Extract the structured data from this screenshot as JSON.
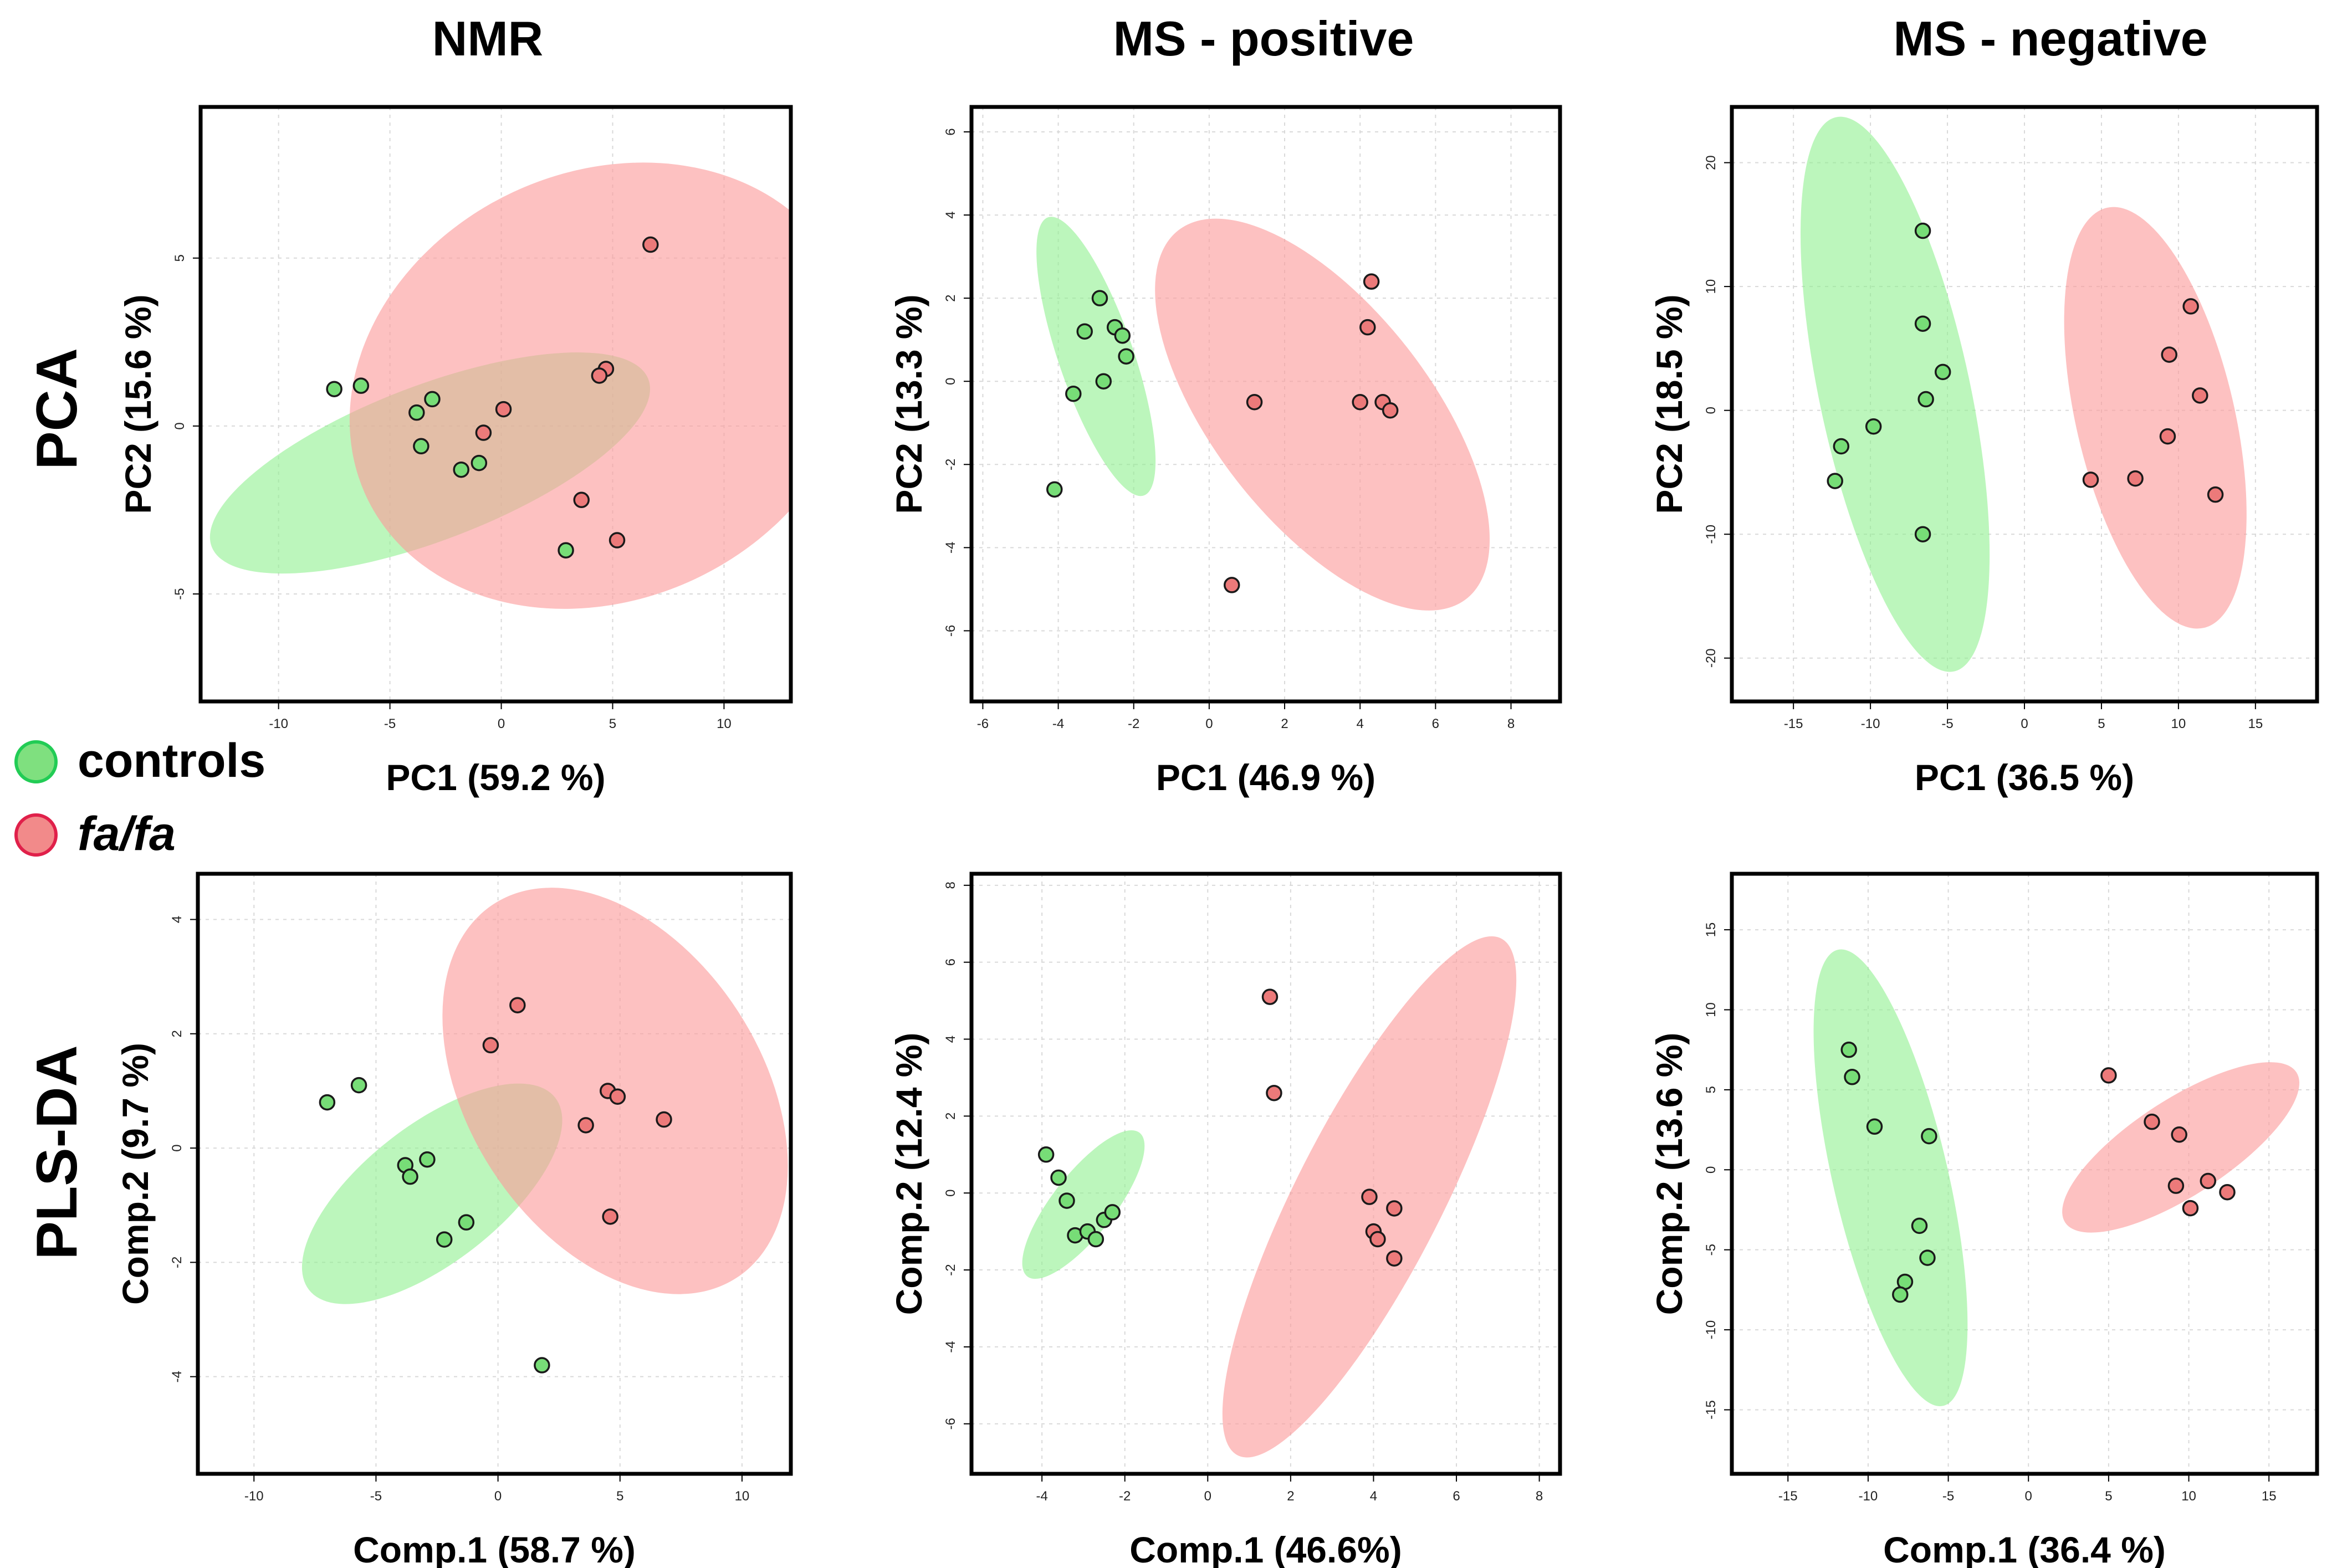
{
  "columns": [
    "NMR",
    "MS - positive",
    "MS - negative"
  ],
  "rows": [
    "PCA",
    "PLS-DA"
  ],
  "legend": [
    {
      "label": "controls",
      "italic": false,
      "fill": "#7fe07f",
      "stroke": "#22cc55"
    },
    {
      "label": "fa/fa",
      "italic": true,
      "fill": "#f28a8a",
      "stroke": "#e0204a"
    }
  ],
  "colors": {
    "controls_point": "#77dd77",
    "fafa_point": "#ec7a7a",
    "controls_ellipse": "#8ff08f",
    "fafa_ellipse": "#fb9b9b",
    "grid": "#d9d9d9"
  },
  "chart_data": [
    {
      "type": "scatter",
      "row": "PCA",
      "column": "NMR",
      "xlabel": "PC1 (59.2 %)",
      "ylabel": "PC2 (15.6 %)",
      "xlim": [
        -13.5,
        13
      ],
      "ylim": [
        -8.2,
        9.5
      ],
      "xticks": [
        -10,
        -5,
        0,
        5,
        10
      ],
      "yticks": [
        -5,
        0,
        5
      ],
      "series": [
        {
          "name": "controls",
          "x": [
            -7.5,
            -6.3,
            -3.8,
            -3.1,
            -3.6,
            -1.8,
            -1.0,
            2.9
          ],
          "y": [
            1.1,
            1.2,
            0.4,
            0.8,
            -0.6,
            -1.3,
            -1.1,
            -3.7
          ],
          "ellipse": {
            "cx": -3.2,
            "cy": -1.1,
            "rx": 10.5,
            "ry": 2.3,
            "angle": -21
          }
        },
        {
          "name": "fa/fa",
          "x": [
            6.7,
            4.7,
            4.4,
            0.1,
            -0.8,
            3.6,
            5.2
          ],
          "y": [
            5.4,
            1.7,
            1.5,
            0.5,
            -0.2,
            -2.2,
            -3.4
          ],
          "ellipse": {
            "cx": 4.6,
            "cy": 1.2,
            "rx": 9.6,
            "ry": 7.8,
            "angle": 65
          }
        }
      ]
    },
    {
      "type": "scatter",
      "row": "PCA",
      "column": "MS - positive",
      "xlabel": "PC1 (46.9 %)",
      "ylabel": "PC2 (13.3 %)",
      "xlim": [
        -6.3,
        9.3
      ],
      "ylim": [
        -7.7,
        6.6
      ],
      "xticks": [
        -6,
        -4,
        -2,
        0,
        2,
        4,
        6,
        8
      ],
      "yticks": [
        -6,
        -4,
        -2,
        0,
        2,
        4,
        6
      ],
      "series": [
        {
          "name": "controls",
          "x": [
            -2.9,
            -3.3,
            -2.5,
            -2.3,
            -2.2,
            -3.6,
            -2.8,
            -4.1
          ],
          "y": [
            2.0,
            1.2,
            1.3,
            1.1,
            0.6,
            -0.3,
            0.0,
            -2.6
          ],
          "ellipse": {
            "cx": -3.0,
            "cy": 0.6,
            "rx": 3.9,
            "ry": 0.9,
            "angle": 71
          }
        },
        {
          "name": "fa/fa",
          "x": [
            4.3,
            4.2,
            1.2,
            4.0,
            4.6,
            4.8,
            0.6
          ],
          "y": [
            2.4,
            1.3,
            -0.5,
            -0.5,
            -0.5,
            -0.7,
            -4.9
          ],
          "ellipse": {
            "cx": 3.0,
            "cy": -0.8,
            "rx": 6.2,
            "ry": 2.6,
            "angle": 52
          }
        }
      ]
    },
    {
      "type": "scatter",
      "row": "PCA",
      "column": "MS - negative",
      "xlabel": "PC1 (36.5 %)",
      "ylabel": "PC2 (18.5 %)",
      "xlim": [
        -19,
        19
      ],
      "ylim": [
        -23.5,
        24.5
      ],
      "xticks": [
        -15,
        -10,
        -5,
        0,
        5,
        10,
        15
      ],
      "yticks": [
        -20,
        -10,
        0,
        10,
        20
      ],
      "series": [
        {
          "name": "controls",
          "x": [
            -6.6,
            -6.6,
            -5.3,
            -6.4,
            -9.8,
            -11.9,
            -12.3,
            -6.6
          ],
          "y": [
            14.5,
            7.0,
            3.1,
            0.9,
            -1.3,
            -2.9,
            -5.7,
            -10.0
          ],
          "ellipse": {
            "cx": -8.4,
            "cy": 1.3,
            "rx": 18.4,
            "ry": 6.1,
            "angle": 78
          }
        },
        {
          "name": "fa/fa",
          "x": [
            10.8,
            9.4,
            11.4,
            9.3,
            7.2,
            4.3,
            12.4
          ],
          "y": [
            8.4,
            4.5,
            1.2,
            -2.1,
            -5.5,
            -5.6,
            -6.8
          ],
          "ellipse": {
            "cx": 8.5,
            "cy": -0.6,
            "rx": 14.0,
            "ry": 6.4,
            "angle": 77
          }
        }
      ]
    },
    {
      "type": "scatter",
      "row": "PLS-DA",
      "column": "NMR",
      "xlabel": "Comp.1 (58.7 %)",
      "ylabel": "Comp.2 (9.7 %)",
      "xlim": [
        -12.3,
        12
      ],
      "ylim": [
        -5.7,
        4.8
      ],
      "xticks": [
        -10,
        -5,
        0,
        5,
        10
      ],
      "yticks": [
        -4,
        -2,
        0,
        2,
        4
      ],
      "series": [
        {
          "name": "controls",
          "x": [
            -7.0,
            -5.7,
            -3.8,
            -3.6,
            -2.9,
            -1.3,
            -2.2,
            1.8
          ],
          "y": [
            0.8,
            1.1,
            -0.3,
            -0.5,
            -0.2,
            -1.3,
            -1.6,
            -3.8
          ],
          "ellipse": {
            "cx": -2.7,
            "cy": -0.8,
            "rx": 6.4,
            "ry": 1.2,
            "angle": -38
          }
        },
        {
          "name": "fa/fa",
          "x": [
            0.8,
            -0.3,
            4.5,
            4.9,
            3.6,
            6.8,
            4.6
          ],
          "y": [
            2.5,
            1.8,
            1.0,
            0.9,
            0.4,
            0.5,
            -1.2
          ],
          "ellipse": {
            "cx": 4.8,
            "cy": 1.0,
            "rx": 6.0,
            "ry": 3.9,
            "angle": -33
          }
        }
      ]
    },
    {
      "type": "scatter",
      "row": "PLS-DA",
      "column": "MS - positive",
      "xlabel": "Comp.1 (46.6%)",
      "ylabel": "Comp.2 (12.4 %)",
      "xlim": [
        -5.7,
        8.5
      ],
      "ylim": [
        -7.3,
        8.3
      ],
      "xticks": [
        -4,
        -2,
        0,
        2,
        4,
        6,
        8
      ],
      "yticks": [
        -6,
        -4,
        -2,
        0,
        2,
        4,
        6,
        8
      ],
      "series": [
        {
          "name": "controls",
          "x": [
            -3.9,
            -3.6,
            -3.4,
            -3.2,
            -2.9,
            -2.7,
            -2.5,
            -2.3
          ],
          "y": [
            1.0,
            0.4,
            -0.2,
            -1.1,
            -1.0,
            -1.2,
            -0.7,
            -0.5
          ],
          "ellipse": {
            "cx": -3.0,
            "cy": -0.3,
            "rx": 2.2,
            "ry": 0.8,
            "angle": -52
          }
        },
        {
          "name": "fa/fa",
          "x": [
            1.5,
            1.6,
            3.9,
            4.0,
            4.1,
            4.5,
            4.5
          ],
          "y": [
            5.1,
            2.6,
            -0.1,
            -1.0,
            -1.2,
            -0.4,
            -1.7
          ],
          "ellipse": {
            "cx": 3.9,
            "cy": -0.1,
            "rx": 7.0,
            "ry": 1.9,
            "angle": -63
          }
        }
      ]
    },
    {
      "type": "scatter",
      "row": "PLS-DA",
      "column": "MS - negative",
      "xlabel": "Comp.1 (36.4 %)",
      "ylabel": "Comp.2 (13.6 %)",
      "xlim": [
        -18.5,
        18
      ],
      "ylim": [
        -19,
        18.5
      ],
      "xticks": [
        -15,
        -10,
        -5,
        0,
        5,
        10,
        15
      ],
      "yticks": [
        -15,
        -10,
        -5,
        0,
        5,
        10,
        15
      ],
      "series": [
        {
          "name": "controls",
          "x": [
            -11.2,
            -11.0,
            -9.6,
            -6.2,
            -6.8,
            -6.3,
            -7.7,
            -8.0
          ],
          "y": [
            7.5,
            5.8,
            2.7,
            2.1,
            -3.5,
            -5.5,
            -7.0,
            -7.8
          ],
          "ellipse": {
            "cx": -8.6,
            "cy": -0.5,
            "rx": 14.6,
            "ry": 3.6,
            "angle": 77
          }
        },
        {
          "name": "fa/fa",
          "x": [
            5.0,
            7.7,
            9.4,
            9.2,
            11.2,
            10.1,
            12.4
          ],
          "y": [
            5.9,
            3.0,
            2.2,
            -1.0,
            -0.7,
            -2.4,
            -1.4
          ],
          "ellipse": {
            "cx": 9.5,
            "cy": 1.4,
            "rx": 8.6,
            "ry": 3.0,
            "angle": -33
          }
        }
      ]
    }
  ]
}
